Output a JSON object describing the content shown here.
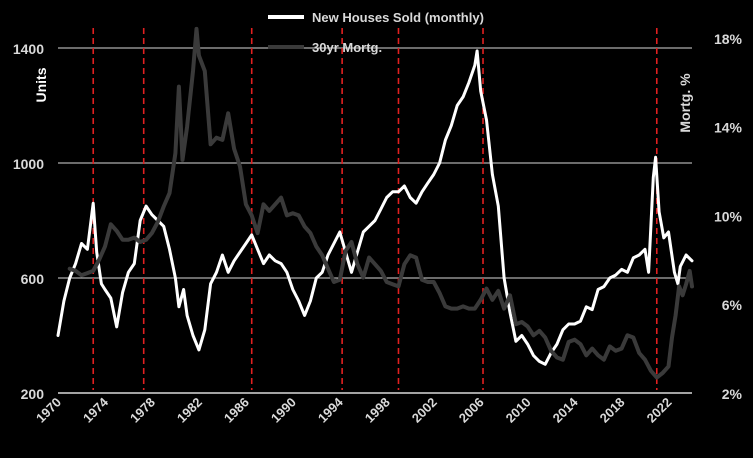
{
  "chart_data": {
    "type": "line",
    "legend": {
      "position": "top-center"
    },
    "y_left": {
      "label": "Units",
      "ticks": [
        200,
        600,
        1000,
        1400
      ],
      "range": [
        200,
        1400
      ],
      "gridlines": true
    },
    "y_right": {
      "label": "Mortg. %",
      "ticks": [
        "2%",
        "6%",
        "10%",
        "14%",
        "18%"
      ],
      "range": [
        2,
        18.8
      ]
    },
    "x_axis": {
      "ticks": [
        "1970",
        "1974",
        "1978",
        "1982",
        "1986",
        "1990",
        "1994",
        "1998",
        "2002",
        "2006",
        "2010",
        "2014",
        "2018",
        "2022"
      ],
      "range": [
        1970,
        2024
      ]
    },
    "vertical_markers": {
      "style": "dashed",
      "color": "#e02020",
      "x": [
        1973.0,
        1977.3,
        1986.5,
        1994.2,
        1999.0,
        2006.2,
        2021.0
      ]
    },
    "series": [
      {
        "name": "New Houses Sold (monthly)",
        "axis": "left",
        "color": "#ffffff",
        "points": [
          [
            1970.0,
            400
          ],
          [
            1970.5,
            520
          ],
          [
            1971.0,
            600
          ],
          [
            1971.5,
            650
          ],
          [
            1972.0,
            720
          ],
          [
            1972.5,
            700
          ],
          [
            1973.0,
            860
          ],
          [
            1973.3,
            690
          ],
          [
            1973.7,
            580
          ],
          [
            1974.0,
            560
          ],
          [
            1974.5,
            530
          ],
          [
            1975.0,
            430
          ],
          [
            1975.5,
            550
          ],
          [
            1976.0,
            620
          ],
          [
            1976.5,
            650
          ],
          [
            1977.0,
            800
          ],
          [
            1977.5,
            850
          ],
          [
            1978.0,
            820
          ],
          [
            1978.5,
            800
          ],
          [
            1979.0,
            780
          ],
          [
            1979.5,
            700
          ],
          [
            1980.0,
            600
          ],
          [
            1980.3,
            500
          ],
          [
            1980.7,
            560
          ],
          [
            1981.0,
            470
          ],
          [
            1981.5,
            400
          ],
          [
            1982.0,
            350
          ],
          [
            1982.5,
            420
          ],
          [
            1983.0,
            580
          ],
          [
            1983.5,
            620
          ],
          [
            1984.0,
            680
          ],
          [
            1984.5,
            620
          ],
          [
            1985.0,
            660
          ],
          [
            1985.5,
            690
          ],
          [
            1986.0,
            720
          ],
          [
            1986.5,
            750
          ],
          [
            1987.0,
            700
          ],
          [
            1987.5,
            650
          ],
          [
            1988.0,
            680
          ],
          [
            1988.5,
            660
          ],
          [
            1989.0,
            650
          ],
          [
            1989.5,
            620
          ],
          [
            1990.0,
            560
          ],
          [
            1990.5,
            520
          ],
          [
            1991.0,
            470
          ],
          [
            1991.5,
            520
          ],
          [
            1992.0,
            600
          ],
          [
            1992.5,
            620
          ],
          [
            1993.0,
            680
          ],
          [
            1993.5,
            720
          ],
          [
            1994.0,
            760
          ],
          [
            1994.5,
            690
          ],
          [
            1995.0,
            620
          ],
          [
            1995.5,
            690
          ],
          [
            1996.0,
            760
          ],
          [
            1996.5,
            780
          ],
          [
            1997.0,
            800
          ],
          [
            1997.5,
            840
          ],
          [
            1998.0,
            880
          ],
          [
            1998.5,
            900
          ],
          [
            1999.0,
            900
          ],
          [
            1999.5,
            920
          ],
          [
            2000.0,
            880
          ],
          [
            2000.5,
            860
          ],
          [
            2001.0,
            900
          ],
          [
            2001.5,
            930
          ],
          [
            2002.0,
            960
          ],
          [
            2002.5,
            1000
          ],
          [
            2003.0,
            1080
          ],
          [
            2003.5,
            1130
          ],
          [
            2004.0,
            1200
          ],
          [
            2004.5,
            1230
          ],
          [
            2005.0,
            1280
          ],
          [
            2005.5,
            1340
          ],
          [
            2005.7,
            1390
          ],
          [
            2006.0,
            1250
          ],
          [
            2006.5,
            1150
          ],
          [
            2007.0,
            960
          ],
          [
            2007.5,
            850
          ],
          [
            2008.0,
            600
          ],
          [
            2008.5,
            480
          ],
          [
            2009.0,
            380
          ],
          [
            2009.5,
            400
          ],
          [
            2010.0,
            370
          ],
          [
            2010.5,
            330
          ],
          [
            2011.0,
            310
          ],
          [
            2011.5,
            300
          ],
          [
            2012.0,
            340
          ],
          [
            2012.5,
            370
          ],
          [
            2013.0,
            420
          ],
          [
            2013.5,
            440
          ],
          [
            2014.0,
            440
          ],
          [
            2014.5,
            450
          ],
          [
            2015.0,
            500
          ],
          [
            2015.5,
            490
          ],
          [
            2016.0,
            560
          ],
          [
            2016.5,
            570
          ],
          [
            2017.0,
            600
          ],
          [
            2017.5,
            610
          ],
          [
            2018.0,
            630
          ],
          [
            2018.5,
            620
          ],
          [
            2019.0,
            670
          ],
          [
            2019.5,
            680
          ],
          [
            2020.0,
            700
          ],
          [
            2020.3,
            620
          ],
          [
            2020.7,
            950
          ],
          [
            2020.9,
            1020
          ],
          [
            2021.2,
            830
          ],
          [
            2021.6,
            740
          ],
          [
            2022.0,
            760
          ],
          [
            2022.5,
            620
          ],
          [
            2022.8,
            580
          ],
          [
            2023.0,
            640
          ],
          [
            2023.5,
            680
          ],
          [
            2024.0,
            660
          ]
        ]
      },
      {
        "name": "30yr Mortg.",
        "axis": "right",
        "color": "#3a3a3a",
        "points": [
          [
            1971.0,
            7.6
          ],
          [
            1971.5,
            7.5
          ],
          [
            1972.0,
            7.3
          ],
          [
            1972.5,
            7.4
          ],
          [
            1973.0,
            7.5
          ],
          [
            1973.5,
            8.0
          ],
          [
            1974.0,
            8.6
          ],
          [
            1974.5,
            9.6
          ],
          [
            1975.0,
            9.3
          ],
          [
            1975.5,
            8.9
          ],
          [
            1976.0,
            8.9
          ],
          [
            1976.5,
            9.0
          ],
          [
            1977.0,
            8.8
          ],
          [
            1977.5,
            8.9
          ],
          [
            1978.0,
            9.2
          ],
          [
            1978.5,
            9.7
          ],
          [
            1979.0,
            10.4
          ],
          [
            1979.5,
            11.0
          ],
          [
            1980.0,
            12.8
          ],
          [
            1980.3,
            15.8
          ],
          [
            1980.6,
            12.5
          ],
          [
            1981.0,
            14.0
          ],
          [
            1981.5,
            16.5
          ],
          [
            1981.8,
            18.4
          ],
          [
            1982.0,
            17.2
          ],
          [
            1982.5,
            16.5
          ],
          [
            1983.0,
            13.2
          ],
          [
            1983.5,
            13.5
          ],
          [
            1984.0,
            13.4
          ],
          [
            1984.5,
            14.6
          ],
          [
            1985.0,
            13.0
          ],
          [
            1985.5,
            12.2
          ],
          [
            1986.0,
            10.5
          ],
          [
            1986.5,
            10.0
          ],
          [
            1987.0,
            9.2
          ],
          [
            1987.5,
            10.5
          ],
          [
            1988.0,
            10.2
          ],
          [
            1988.5,
            10.5
          ],
          [
            1989.0,
            10.8
          ],
          [
            1989.5,
            10.0
          ],
          [
            1990.0,
            10.1
          ],
          [
            1990.5,
            10.0
          ],
          [
            1991.0,
            9.5
          ],
          [
            1991.5,
            9.2
          ],
          [
            1992.0,
            8.6
          ],
          [
            1992.5,
            8.2
          ],
          [
            1993.0,
            7.6
          ],
          [
            1993.5,
            7.0
          ],
          [
            1994.0,
            7.1
          ],
          [
            1994.5,
            8.4
          ],
          [
            1995.0,
            8.8
          ],
          [
            1995.5,
            7.8
          ],
          [
            1996.0,
            7.2
          ],
          [
            1996.5,
            8.1
          ],
          [
            1997.0,
            7.8
          ],
          [
            1997.5,
            7.5
          ],
          [
            1998.0,
            7.0
          ],
          [
            1998.5,
            6.9
          ],
          [
            1999.0,
            6.8
          ],
          [
            1999.5,
            7.8
          ],
          [
            2000.0,
            8.2
          ],
          [
            2000.5,
            8.1
          ],
          [
            2001.0,
            7.1
          ],
          [
            2001.5,
            7.0
          ],
          [
            2002.0,
            7.0
          ],
          [
            2002.5,
            6.5
          ],
          [
            2003.0,
            5.9
          ],
          [
            2003.5,
            5.8
          ],
          [
            2004.0,
            5.8
          ],
          [
            2004.5,
            5.9
          ],
          [
            2005.0,
            5.8
          ],
          [
            2005.5,
            5.8
          ],
          [
            2006.0,
            6.2
          ],
          [
            2006.5,
            6.7
          ],
          [
            2007.0,
            6.2
          ],
          [
            2007.5,
            6.6
          ],
          [
            2008.0,
            5.8
          ],
          [
            2008.5,
            6.4
          ],
          [
            2009.0,
            5.1
          ],
          [
            2009.5,
            5.2
          ],
          [
            2010.0,
            5.0
          ],
          [
            2010.5,
            4.6
          ],
          [
            2011.0,
            4.8
          ],
          [
            2011.5,
            4.5
          ],
          [
            2012.0,
            3.9
          ],
          [
            2012.5,
            3.6
          ],
          [
            2013.0,
            3.5
          ],
          [
            2013.5,
            4.3
          ],
          [
            2014.0,
            4.4
          ],
          [
            2014.5,
            4.2
          ],
          [
            2015.0,
            3.7
          ],
          [
            2015.5,
            4.0
          ],
          [
            2016.0,
            3.7
          ],
          [
            2016.5,
            3.5
          ],
          [
            2017.0,
            4.1
          ],
          [
            2017.5,
            3.9
          ],
          [
            2018.0,
            4.0
          ],
          [
            2018.5,
            4.6
          ],
          [
            2019.0,
            4.5
          ],
          [
            2019.5,
            3.8
          ],
          [
            2020.0,
            3.5
          ],
          [
            2020.5,
            3.0
          ],
          [
            2021.0,
            2.7
          ],
          [
            2021.5,
            2.9
          ],
          [
            2022.0,
            3.2
          ],
          [
            2022.3,
            4.5
          ],
          [
            2022.6,
            5.5
          ],
          [
            2022.9,
            6.8
          ],
          [
            2023.2,
            6.4
          ],
          [
            2023.5,
            6.9
          ],
          [
            2023.8,
            7.5
          ],
          [
            2024.0,
            6.8
          ]
        ]
      }
    ]
  }
}
